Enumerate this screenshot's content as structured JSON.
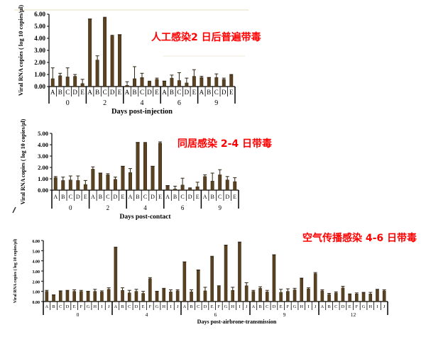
{
  "chart_data": [
    {
      "type": "bar",
      "annotation": "人工感染2 日后普遍带毒",
      "ylabel": "Viral RNA copies ( log 10 copies/μl)",
      "xlabel": "Days post-injection",
      "ylim": [
        0,
        6
      ],
      "yticks": [
        "0.00",
        "1.00",
        "2.00",
        "3.00",
        "4.00",
        "5.00",
        "6.00"
      ],
      "groups": [
        "0",
        "2",
        "4",
        "6",
        "9"
      ],
      "subcategories": [
        "A",
        "B",
        "C",
        "D",
        "E"
      ],
      "values": [
        [
          0.65,
          0.9,
          0.8,
          0.85,
          0.25
        ],
        [
          5.6,
          2.2,
          5.7,
          4.2,
          4.3
        ],
        [
          0.1,
          0.65,
          0.75,
          0.4,
          0.6
        ],
        [
          0.45,
          0.7,
          0.5,
          0.3,
          0.85
        ],
        [
          0.75,
          0.75,
          0.75,
          0.6,
          0.95
        ]
      ],
      "errors": [
        [
          0.9,
          0.2,
          0.75,
          0.15,
          0.35
        ],
        [
          0,
          0.35,
          0.05,
          0.05,
          0
        ],
        [
          0.3,
          1.0,
          0.35,
          0.05,
          0.1
        ],
        [
          0,
          0.25,
          0.65,
          0.4,
          0.55
        ],
        [
          0.1,
          0,
          0.3,
          0.1,
          0.05
        ]
      ],
      "bar_color": "#5a4220"
    },
    {
      "type": "bar",
      "annotation": "同居感染 2-4 日带毒",
      "ylabel": "Viral RNA copies ( log 10 copies/μl)",
      "xlabel": "Days post-contact",
      "ylim": [
        0,
        5
      ],
      "yticks": [
        "0.00",
        "1.00",
        "2.00",
        "3.00",
        "4.00",
        "5.00"
      ],
      "groups": [
        "0",
        "2",
        "4",
        "6",
        "9"
      ],
      "subcategories": [
        "A",
        "B",
        "C",
        "D",
        "E"
      ],
      "values": [
        [
          1.1,
          0.85,
          0.9,
          0.85,
          0.5
        ],
        [
          1.85,
          1.5,
          1.35,
          0.95,
          2.1
        ],
        [
          1.55,
          4.2,
          4.15,
          2.1,
          4.15
        ],
        [
          0.4,
          0.1,
          0.45,
          0.15,
          0.3
        ],
        [
          1.2,
          0.8,
          1.35,
          0.9,
          0.75
        ]
      ],
      "errors": [
        [
          0.1,
          0.3,
          0.35,
          0.4,
          0.35
        ],
        [
          0.2,
          0,
          0.1,
          0.2,
          0
        ],
        [
          0.35,
          0,
          0.05,
          0,
          0.1
        ],
        [
          0,
          0.25,
          0.6,
          0.05,
          0.4
        ],
        [
          0.15,
          0.7,
          0.45,
          0.3,
          0.35
        ]
      ],
      "bar_color": "#5a4220"
    },
    {
      "type": "bar",
      "annotation": "空气传播感染 4-6 日带毒",
      "ylabel": "Viral RNA copies ( log 10 copies/μl)",
      "xlabel": "Days post-airbrone-transmission",
      "ylim": [
        0,
        6
      ],
      "yticks": [
        "0.00",
        "1.00",
        "2.00",
        "3.00",
        "4.00",
        "5.00",
        "6.00"
      ],
      "groups": [
        "0",
        "4",
        "6",
        "9",
        "12"
      ],
      "subcategories": [
        "A",
        "B",
        "C",
        "D",
        "E",
        "F",
        "G",
        "H",
        "I",
        "J"
      ],
      "values": [
        [
          1.0,
          0.65,
          1.0,
          1.05,
          1.0,
          1.0,
          1.0,
          1.0,
          0.95,
          1.2
        ],
        [
          5.3,
          1.1,
          0.85,
          1.0,
          0.8,
          2.25,
          1.0,
          1.25,
          0.95,
          1.05
        ],
        [
          3.85,
          0.95,
          3.1,
          1.05,
          4.4,
          1.5,
          5.5,
          1.1,
          5.8,
          1.55
        ],
        [
          1.0,
          1.3,
          0.95,
          4.55,
          0.9,
          1.0,
          1.15,
          2.25,
          1.25,
          2.75
        ],
        [
          1.05,
          0.7,
          0.85,
          1.35,
          0.7,
          0.75,
          0.85,
          0.75,
          1.15,
          1.05
        ]
      ],
      "errors": [
        [
          0.1,
          0,
          0.05,
          0.05,
          0.15,
          0.1,
          0,
          0.2,
          0.1,
          0.15
        ],
        [
          0.05,
          0.25,
          0.25,
          0.2,
          0.2,
          0.1,
          0,
          0.05,
          0.2,
          0.1
        ],
        [
          0.05,
          0.2,
          0,
          0.35,
          0.05,
          0.05,
          0.05,
          0.3,
          0.05,
          0.3
        ],
        [
          0.1,
          0.15,
          0.15,
          0.05,
          0.3,
          0.25,
          0.15,
          0.05,
          0.1,
          0.1
        ],
        [
          0.1,
          0.1,
          0.1,
          0.15,
          0.05,
          0.1,
          0.05,
          0.15,
          0.05,
          0.1
        ]
      ],
      "bar_color": "#5a4220"
    }
  ]
}
